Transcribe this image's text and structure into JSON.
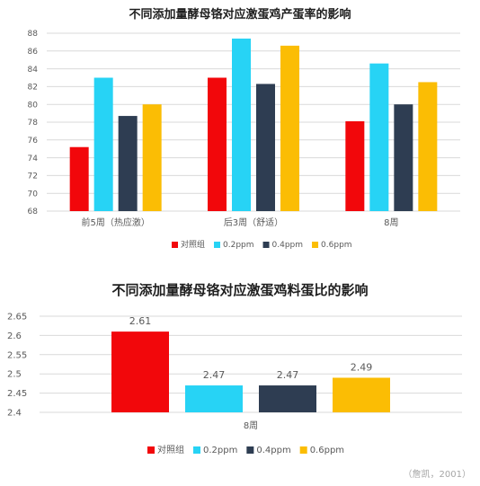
{
  "colors": {
    "control": "#f2070b",
    "p02": "#27d3f5",
    "p04": "#2e3d52",
    "p06": "#fbbd04",
    "grid": "#d9d9d9",
    "text": "#595959",
    "title": "#1f1f1f",
    "source": "#a6a6a6"
  },
  "chart_data": [
    {
      "type": "bar",
      "title": "不同添加量酵母铬对应激蛋鸡产蛋率的影响",
      "categories": [
        "前5周（热应激）",
        "后3周（舒适）",
        "8周"
      ],
      "series": [
        {
          "name": "对照组",
          "color_key": "control",
          "values": [
            75.2,
            83.0,
            78.1
          ]
        },
        {
          "name": "0.2ppm",
          "color_key": "p02",
          "values": [
            83.0,
            87.4,
            84.6
          ]
        },
        {
          "name": "0.4ppm",
          "color_key": "p04",
          "values": [
            78.7,
            82.3,
            80.0
          ]
        },
        {
          "name": "0.6ppm",
          "color_key": "p06",
          "values": [
            80.0,
            86.6,
            82.5
          ]
        }
      ],
      "ylim": [
        68,
        88
      ],
      "yticks": [
        "68",
        "70",
        "72",
        "74",
        "76",
        "78",
        "80",
        "82",
        "84",
        "86",
        "88"
      ],
      "grid": true,
      "legend": "bottom"
    },
    {
      "type": "bar",
      "title": "不同添加量酵母铬对应激蛋鸡料蛋比的影响",
      "categories": [
        "8周"
      ],
      "series": [
        {
          "name": "对照组",
          "color_key": "control",
          "values": [
            2.61
          ],
          "labels": [
            "2.61"
          ]
        },
        {
          "name": "0.2ppm",
          "color_key": "p02",
          "values": [
            2.47
          ],
          "labels": [
            "2.47"
          ]
        },
        {
          "name": "0.4ppm",
          "color_key": "p04",
          "values": [
            2.47
          ],
          "labels": [
            "2.47"
          ]
        },
        {
          "name": "0.6ppm",
          "color_key": "p06",
          "values": [
            2.49
          ],
          "labels": [
            "2.49"
          ]
        }
      ],
      "ylim": [
        2.4,
        2.65
      ],
      "yticks": [
        "2.4",
        "2.45",
        "2.5",
        "2.55",
        "2.6",
        "2.65"
      ],
      "grid": true,
      "legend": "bottom"
    }
  ],
  "source_note": "（詹凯，2001）"
}
